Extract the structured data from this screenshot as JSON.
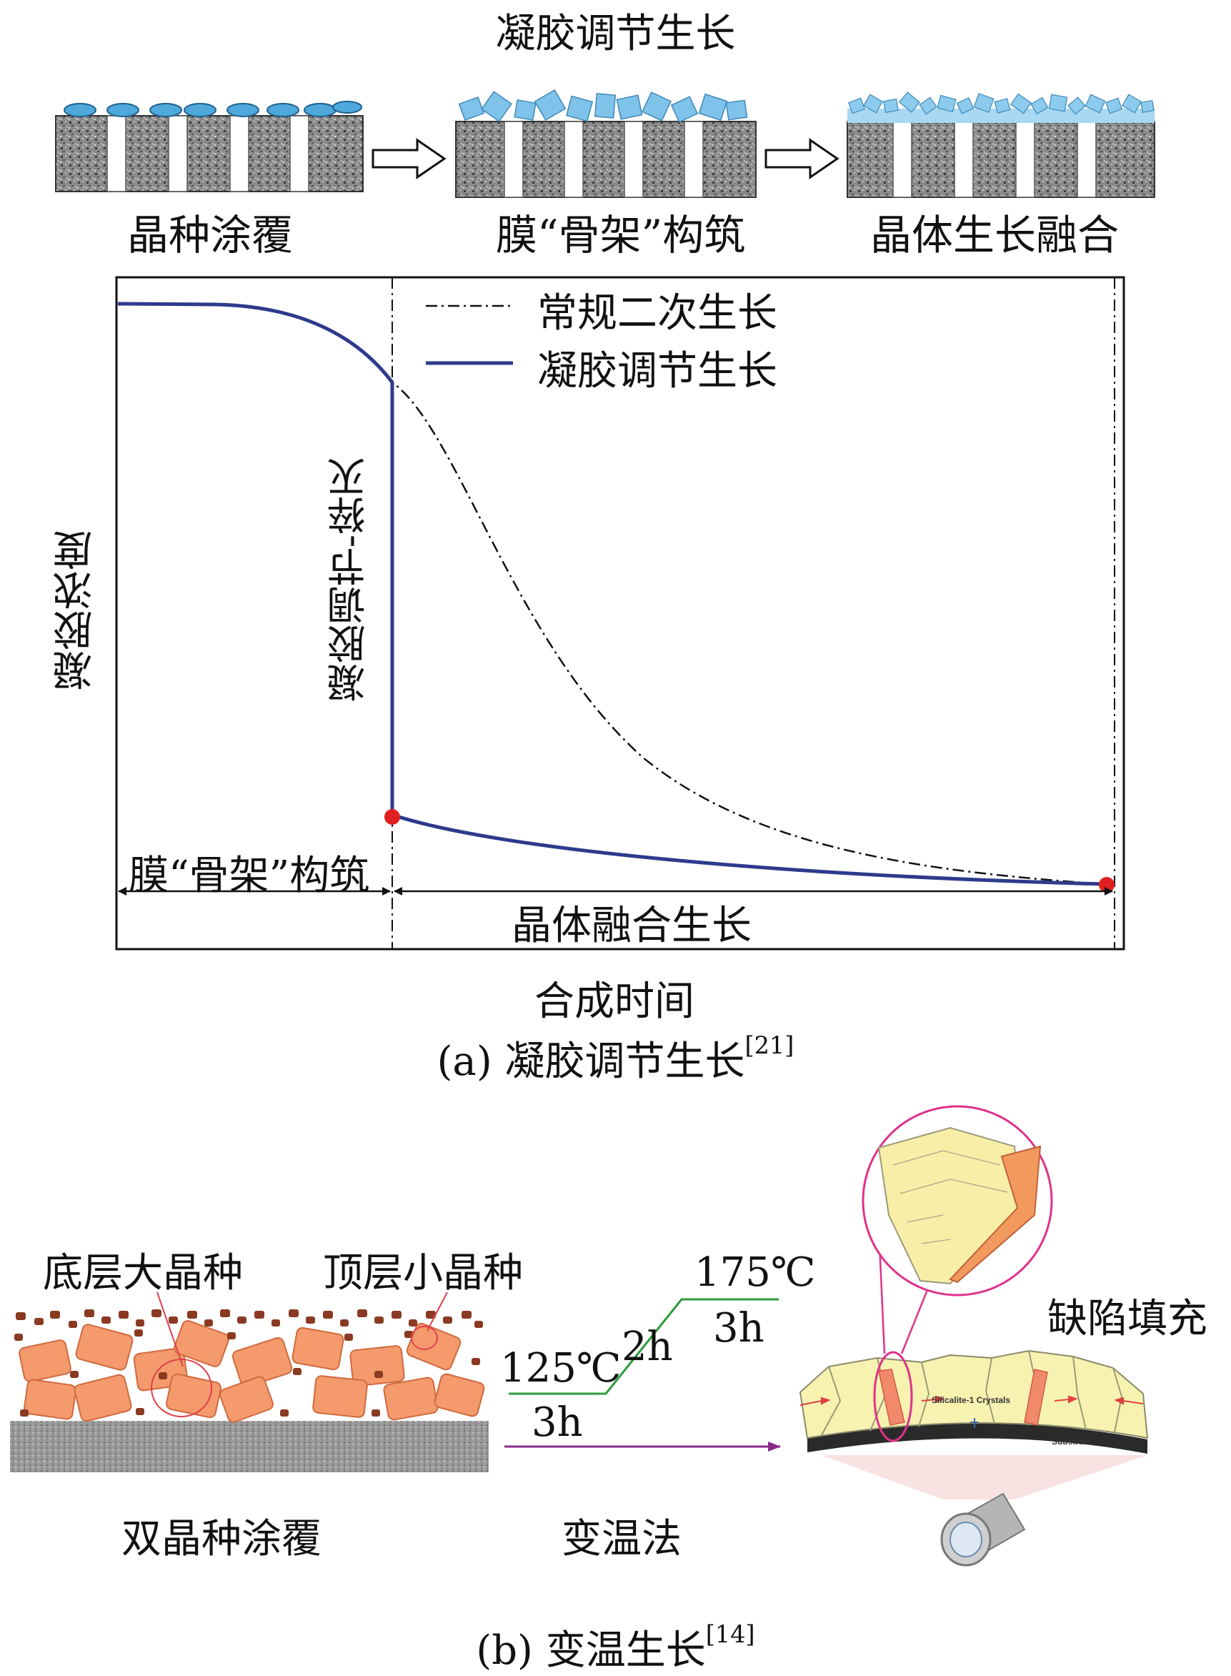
{
  "part_a": {
    "top_title": "凝胶调节生长",
    "steps": [
      "晶种涂覆",
      "膜“骨架”构筑",
      "晶体生长融合"
    ],
    "chart": {
      "legend": [
        {
          "label": "常规二次生长",
          "style": "dash-dot",
          "color": "#111111"
        },
        {
          "label": "凝胶调节生长",
          "style": "solid",
          "color": "#2e3a8c"
        }
      ],
      "y_label": "凝胶浓度",
      "x_label": "合成时间",
      "vertical_annotation": "凝胶调节-猝灭",
      "phase_left": "膜“骨架”构筑",
      "phase_right": "晶体融合生长",
      "marker_color": "#e02020"
    },
    "caption": "(a) 凝胶调节生长",
    "caption_ref": "[21]"
  },
  "part_b": {
    "label_bottom_seed": "底层大晶种",
    "label_top_seed": "顶层小晶种",
    "label_coating": "双晶种涂覆",
    "temp_low": "125℃",
    "time_low": "3h",
    "ramp_time": "2h",
    "temp_high": "175℃",
    "time_high": "3h",
    "method": "变温法",
    "arrow_time": "3h",
    "defect_fill": "缺陷填充",
    "crystal_text": "Silicalite-1 Crystals",
    "substrate_text": "Substrate",
    "caption": "(b) 变温生长",
    "caption_ref": "[14]"
  }
}
